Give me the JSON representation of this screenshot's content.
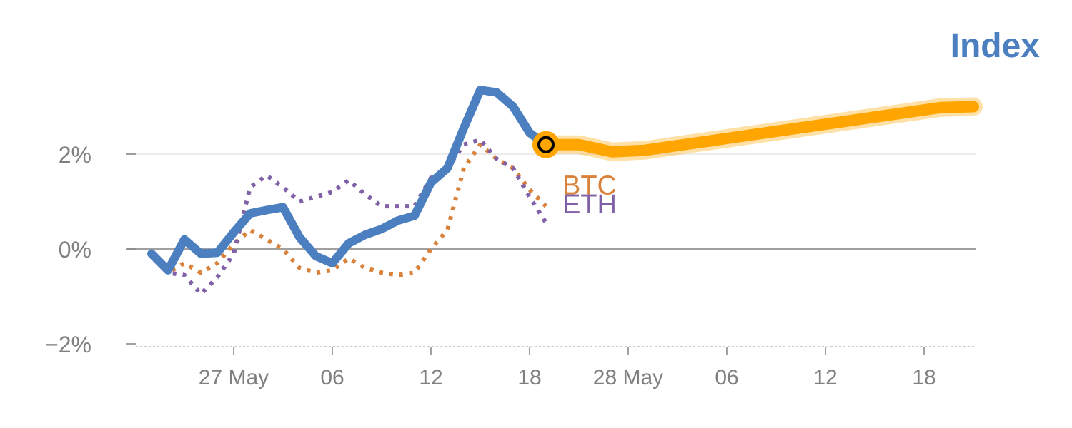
{
  "chart_data": {
    "type": "line",
    "title": "Index",
    "xlabel": "",
    "ylabel": "",
    "y_unit": "%",
    "ylim": [
      -2.0,
      4.5
    ],
    "yticks": [
      -2,
      0,
      2
    ],
    "ytick_labels": [
      "−2%",
      "0%",
      "2%"
    ],
    "xticks": [
      4,
      10,
      16,
      22,
      28,
      34,
      40,
      46
    ],
    "xtick_labels": [
      "27 May",
      "06",
      "12",
      "18",
      "28 May",
      "06",
      "12",
      "18"
    ],
    "grid": true,
    "colors": {
      "index": "#4c7fc0",
      "btc": "#d9823b",
      "eth": "#8060a6",
      "projection": "#ffa500",
      "zero_line": "#808080",
      "grid": "#e6e6e6",
      "tick_text": "#808080"
    },
    "x": [
      -1,
      0,
      1,
      2,
      3,
      4,
      5,
      6,
      7,
      8,
      9,
      10,
      11,
      12,
      13,
      14,
      15,
      16,
      17,
      18,
      19,
      20,
      21,
      22,
      23
    ],
    "series": [
      {
        "name": "Index",
        "style": "solid",
        "values": [
          -0.1,
          -0.45,
          0.2,
          -0.1,
          -0.08,
          0.35,
          0.75,
          0.82,
          0.88,
          0.25,
          -0.15,
          -0.3,
          0.12,
          0.3,
          0.42,
          0.6,
          0.7,
          1.4,
          1.7,
          2.55,
          3.35,
          3.3,
          3.0,
          2.45,
          2.2
        ]
      },
      {
        "name": "BTC",
        "style": "dotted",
        "values": [
          -0.1,
          -0.5,
          -0.3,
          -0.5,
          -0.3,
          0.1,
          0.4,
          0.2,
          0.0,
          -0.4,
          -0.5,
          -0.45,
          -0.2,
          -0.4,
          -0.5,
          -0.55,
          -0.5,
          0.0,
          0.4,
          1.7,
          2.2,
          1.9,
          1.7,
          1.25,
          0.9
        ]
      },
      {
        "name": "ETH",
        "style": "dotted",
        "values": [
          -0.1,
          -0.5,
          -0.55,
          -0.95,
          -0.6,
          -0.1,
          1.3,
          1.55,
          1.3,
          1.0,
          1.1,
          1.2,
          1.45,
          1.15,
          0.9,
          0.9,
          0.9,
          1.5,
          1.7,
          2.2,
          2.3,
          1.9,
          1.7,
          1.1,
          0.55
        ]
      },
      {
        "name": "",
        "style": "projection",
        "x": [
          23,
          25,
          27,
          29,
          31,
          33,
          35,
          37,
          39,
          41,
          43,
          45,
          47,
          49
        ],
        "values": [
          2.2,
          2.2,
          2.05,
          2.08,
          2.18,
          2.28,
          2.38,
          2.48,
          2.58,
          2.68,
          2.78,
          2.88,
          2.98,
          3.0
        ]
      }
    ],
    "marker": {
      "x": 23,
      "y": 2.2
    },
    "label_positions": {
      "BTC": {
        "x": 24,
        "y": 1.15
      },
      "ETH": {
        "x": 24,
        "y": 0.75
      }
    }
  }
}
